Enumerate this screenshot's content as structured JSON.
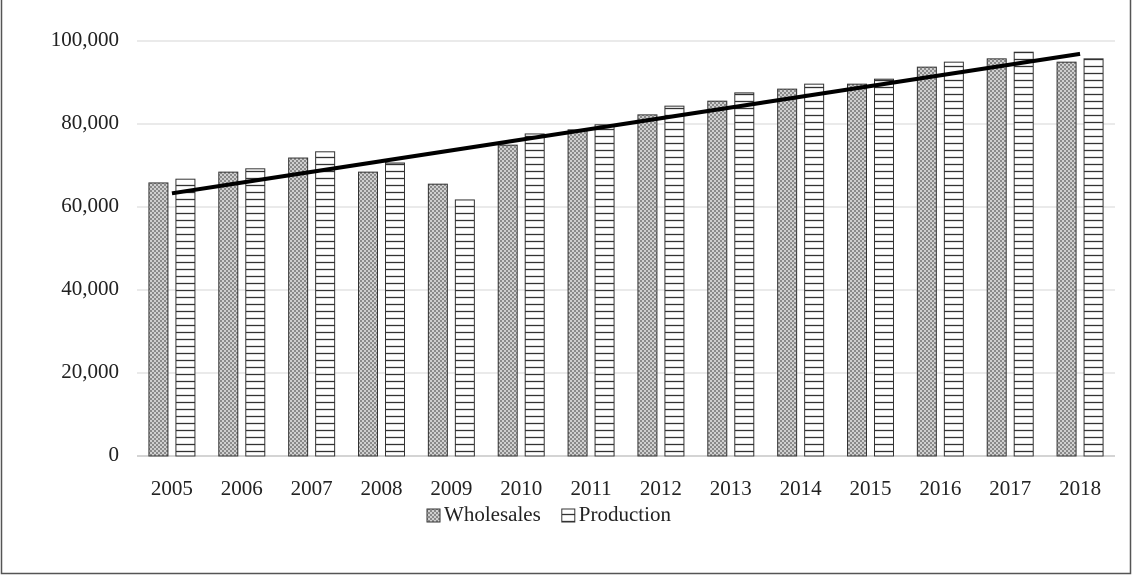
{
  "chart_data": {
    "type": "bar",
    "categories": [
      "2005",
      "2006",
      "2007",
      "2008",
      "2009",
      "2010",
      "2011",
      "2012",
      "2013",
      "2014",
      "2015",
      "2016",
      "2017",
      "2018"
    ],
    "series": [
      {
        "name": "Wholesales",
        "color": "#b8b8b8",
        "pattern": "crosshatch",
        "values": [
          65800,
          68400,
          71800,
          68400,
          65500,
          74900,
          78600,
          82200,
          85500,
          88400,
          89600,
          93700,
          95700,
          94900
        ]
      },
      {
        "name": "Production",
        "color": "#ffffff",
        "pattern": "horizontal-lines",
        "values": [
          66700,
          69200,
          73300,
          70600,
          61700,
          77600,
          79800,
          84300,
          87500,
          89600,
          90800,
          94900,
          97300,
          95700
        ]
      }
    ],
    "trendline": {
      "color": "#000000",
      "values": [
        63300,
        96900
      ]
    },
    "ylim": [
      0,
      100000
    ],
    "yticks": [
      {
        "value": 0,
        "label": "0"
      },
      {
        "value": 20000,
        "label": "20,000"
      },
      {
        "value": 40000,
        "label": "40,000"
      },
      {
        "value": 60000,
        "label": "60,000"
      },
      {
        "value": 80000,
        "label": "80,000"
      },
      {
        "value": 100000,
        "label": "100,000"
      }
    ],
    "grid": true,
    "legend": "bottom"
  }
}
